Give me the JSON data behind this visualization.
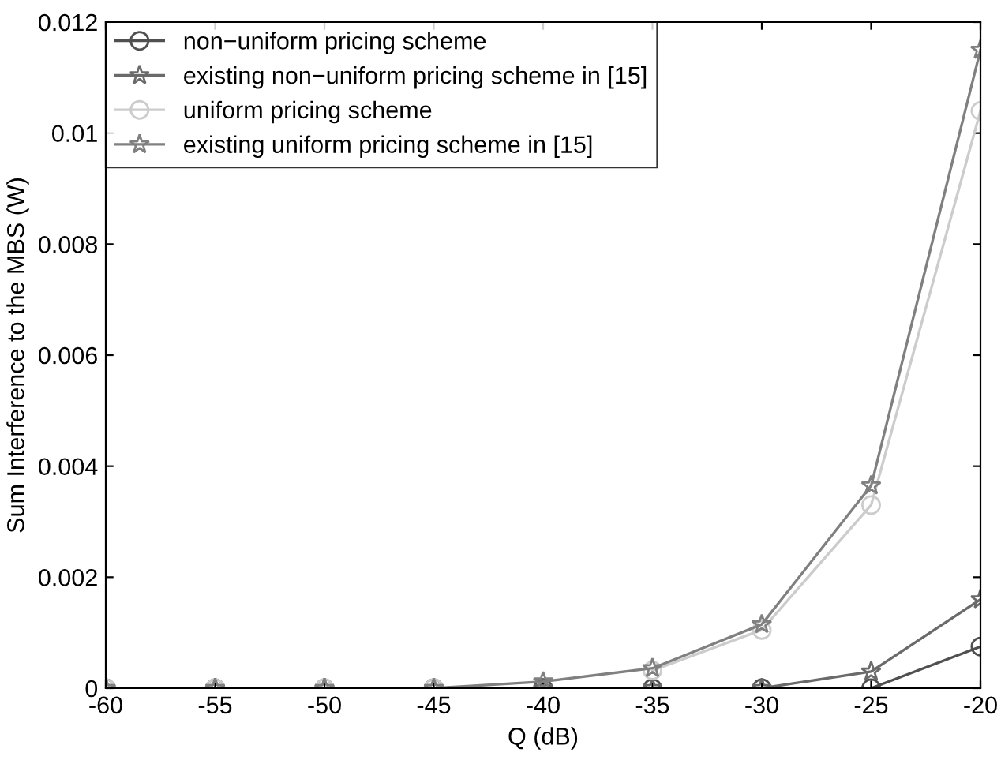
{
  "chart_data": {
    "type": "line",
    "xlabel": "Q (dB)",
    "ylabel": "Sum Interference to the MBS (W)",
    "x": [
      -60,
      -55,
      -50,
      -45,
      -40,
      -35,
      -30,
      -25,
      -20
    ],
    "series": [
      {
        "name": "non−uniform pricing scheme",
        "color": "#505050",
        "marker": "circle",
        "values": [
          0,
          0,
          0,
          0,
          0,
          0,
          0,
          0,
          0.00075
        ]
      },
      {
        "name": "existing non−uniform pricing scheme in [15]",
        "color": "#6a6a6a",
        "marker": "star",
        "values": [
          0,
          0,
          0,
          0,
          0,
          0,
          0,
          0.0003,
          0.0016
        ]
      },
      {
        "name": "uniform pricing scheme",
        "color": "#cccccc",
        "marker": "circle",
        "values": [
          0,
          0,
          0,
          0,
          null,
          0.00032,
          0.00105,
          0.0033,
          0.0104
        ]
      },
      {
        "name": "existing uniform pricing scheme in [15]",
        "color": "#808080",
        "marker": "star",
        "values": [
          0,
          0,
          0,
          0,
          0.00012,
          0.00036,
          0.00115,
          0.00365,
          0.0115
        ]
      }
    ],
    "xlim": [
      -60,
      -20
    ],
    "xticks": [
      -60,
      -55,
      -50,
      -45,
      -40,
      -35,
      -30,
      -25,
      -20
    ],
    "ylim": [
      0,
      0.012
    ],
    "yticks": [
      0,
      0.002,
      0.004,
      0.006,
      0.008,
      0.01,
      0.012
    ],
    "grid": false,
    "legend": "top left",
    "line_style": "solid"
  }
}
